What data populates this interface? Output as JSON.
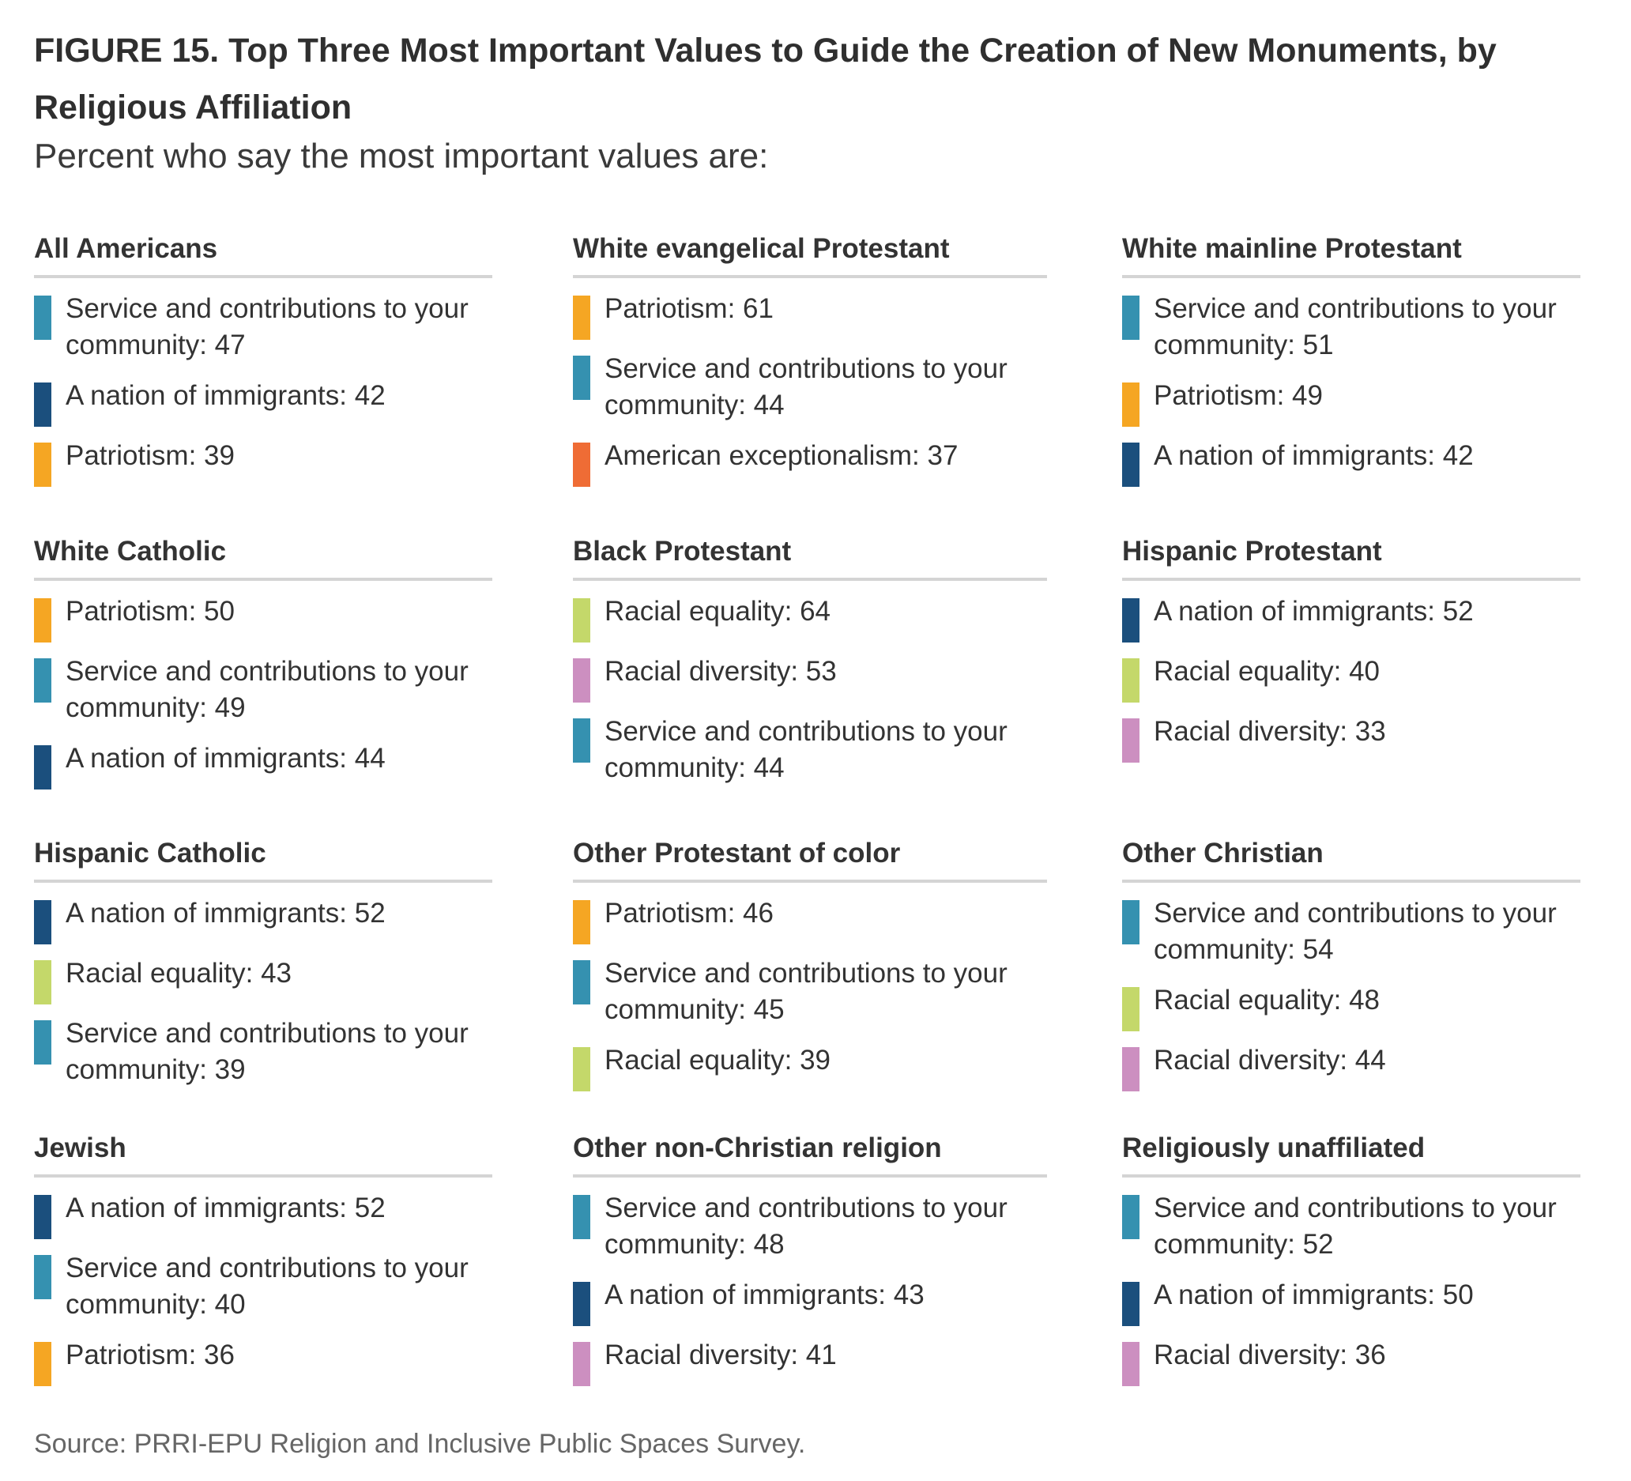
{
  "header": {
    "title": "FIGURE 15. Top Three Most Important Values to Guide the Creation of New Monuments, by Religious Affiliation",
    "subtitle": "Percent who say the most important values are:"
  },
  "source": "Source: PRRI-EPU Religion and Inclusive Public Spaces Survey.",
  "colors": {
    "Service and contributions to your community": "#3591b0",
    "A nation of immigrants": "#1b4f7d",
    "Patriotism": "#f5a623",
    "American exceptionalism": "#ef6c35",
    "Racial equality": "#c4d86a",
    "Racial diversity": "#cc8fc0"
  },
  "chart_data": {
    "type": "table",
    "title": "FIGURE 15. Top Three Most Important Values to Guide the Creation of New Monuments, by Religious Affiliation",
    "subtitle": "Percent who say the most important values are:",
    "panels": [
      {
        "group": "All Americans",
        "items": [
          {
            "label": "Service and contributions to your community",
            "value": 47
          },
          {
            "label": "A nation of immigrants",
            "value": 42
          },
          {
            "label": "Patriotism",
            "value": 39
          }
        ]
      },
      {
        "group": "White evangelical Protestant",
        "items": [
          {
            "label": "Patriotism",
            "value": 61
          },
          {
            "label": "Service and contributions to your community",
            "value": 44
          },
          {
            "label": "American exceptionalism",
            "value": 37
          }
        ]
      },
      {
        "group": "White mainline Protestant",
        "items": [
          {
            "label": "Service and contributions to your community",
            "value": 51
          },
          {
            "label": "Patriotism",
            "value": 49
          },
          {
            "label": "A nation of immigrants",
            "value": 42
          }
        ]
      },
      {
        "group": "White Catholic",
        "items": [
          {
            "label": "Patriotism",
            "value": 50
          },
          {
            "label": "Service and contributions to your community",
            "value": 49
          },
          {
            "label": "A nation of immigrants",
            "value": 44
          }
        ]
      },
      {
        "group": "Black Protestant",
        "items": [
          {
            "label": "Racial equality",
            "value": 64
          },
          {
            "label": "Racial diversity",
            "value": 53
          },
          {
            "label": "Service and contributions to your community",
            "value": 44
          }
        ]
      },
      {
        "group": "Hispanic Protestant",
        "items": [
          {
            "label": "A nation of immigrants",
            "value": 52
          },
          {
            "label": "Racial equality",
            "value": 40
          },
          {
            "label": "Racial diversity",
            "value": 33
          }
        ]
      },
      {
        "group": "Hispanic Catholic",
        "items": [
          {
            "label": "A nation of immigrants",
            "value": 52
          },
          {
            "label": "Racial equality",
            "value": 43
          },
          {
            "label": "Service and contributions to your community",
            "value": 39
          }
        ]
      },
      {
        "group": "Other Protestant of color",
        "items": [
          {
            "label": "Patriotism",
            "value": 46
          },
          {
            "label": "Service and contributions to your community",
            "value": 45
          },
          {
            "label": "Racial equality",
            "value": 39
          }
        ]
      },
      {
        "group": "Other Christian",
        "items": [
          {
            "label": "Service and contributions to your community",
            "value": 54
          },
          {
            "label": "Racial equality",
            "value": 48
          },
          {
            "label": "Racial diversity",
            "value": 44
          }
        ]
      },
      {
        "group": "Jewish",
        "items": [
          {
            "label": "A nation of immigrants",
            "value": 52
          },
          {
            "label": "Service and contributions to your community",
            "value": 40
          },
          {
            "label": "Patriotism",
            "value": 36
          }
        ]
      },
      {
        "group": "Other non-Christian religion",
        "items": [
          {
            "label": "Service and contributions to your community",
            "value": 48
          },
          {
            "label": "A nation of immigrants",
            "value": 43
          },
          {
            "label": "Racial diversity",
            "value": 41
          }
        ]
      },
      {
        "group": "Religiously unaffiliated",
        "items": [
          {
            "label": "Service and contributions to your community",
            "value": 52
          },
          {
            "label": "A nation of immigrants",
            "value": 50
          },
          {
            "label": "Racial diversity",
            "value": 36
          }
        ]
      }
    ]
  }
}
